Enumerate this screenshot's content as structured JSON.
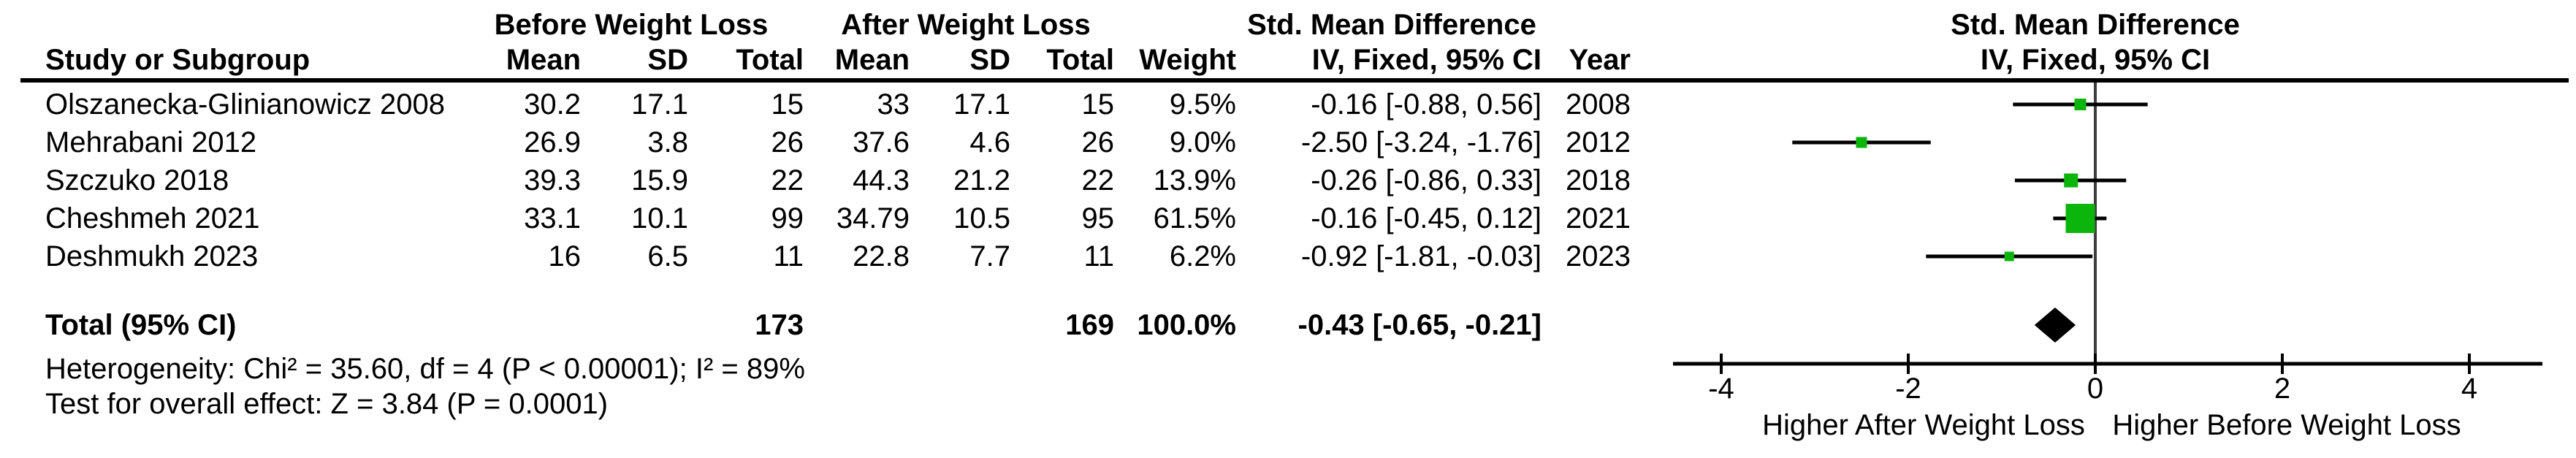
{
  "table": {
    "group_headers": {
      "before": "Before Weight Loss",
      "after": "After Weight Loss",
      "smd": "Std. Mean Difference"
    },
    "col_headers": {
      "study": "Study or Subgroup",
      "mean1": "Mean",
      "sd1": "SD",
      "total1": "Total",
      "mean2": "Mean",
      "sd2": "SD",
      "total2": "Total",
      "weight": "Weight",
      "ci": "IV, Fixed, 95% CI",
      "year": "Year"
    },
    "rows": [
      {
        "study": "Olszanecka-Glinianowicz 2008",
        "mean1": "30.2",
        "sd1": "17.1",
        "total1": "15",
        "mean2": "33",
        "sd2": "17.1",
        "total2": "15",
        "weight": "9.5%",
        "ci": "-0.16 [-0.88, 0.56]",
        "year": "2008"
      },
      {
        "study": "Mehrabani 2012",
        "mean1": "26.9",
        "sd1": "3.8",
        "total1": "26",
        "mean2": "37.6",
        "sd2": "4.6",
        "total2": "26",
        "weight": "9.0%",
        "ci": "-2.50 [-3.24, -1.76]",
        "year": "2012"
      },
      {
        "study": "Szczuko 2018",
        "mean1": "39.3",
        "sd1": "15.9",
        "total1": "22",
        "mean2": "44.3",
        "sd2": "21.2",
        "total2": "22",
        "weight": "13.9%",
        "ci": "-0.26 [-0.86, 0.33]",
        "year": "2018"
      },
      {
        "study": "Cheshmeh 2021",
        "mean1": "33.1",
        "sd1": "10.1",
        "total1": "99",
        "mean2": "34.79",
        "sd2": "10.5",
        "total2": "95",
        "weight": "61.5%",
        "ci": "-0.16 [-0.45, 0.12]",
        "year": "2021"
      },
      {
        "study": "Deshmukh 2023",
        "mean1": "16",
        "sd1": "6.5",
        "total1": "11",
        "mean2": "22.8",
        "sd2": "7.7",
        "total2": "11",
        "weight": "6.2%",
        "ci": "-0.92 [-1.81, -0.03]",
        "year": "2023"
      }
    ],
    "total_row": {
      "label": "Total (95% CI)",
      "total1": "173",
      "total2": "169",
      "weight": "100.0%",
      "ci": "-0.43 [-0.65, -0.21]"
    },
    "heterogeneity": "Heterogeneity: Chi² = 35.60, df = 4 (P < 0.00001); I² = 89%",
    "overall_effect": "Test for overall effect: Z = 3.84 (P = 0.0001)"
  },
  "plot": {
    "header_line1": "Std. Mean Difference",
    "header_line2": "IV, Fixed, 95% CI",
    "x_label_left": "Higher After Weight Loss",
    "x_label_right": "Higher Before Weight Loss",
    "marker_color": "#0CB50C",
    "axis_color": "#000000",
    "zero_line_color": "#3d3d3d",
    "diamond_color": "#000000"
  },
  "chart_data": {
    "type": "forest",
    "title": "Std. Mean Difference, IV, Fixed, 95% CI",
    "effect_measure": "Std. Mean Difference (IV, Fixed, 95% CI)",
    "studies": [
      "Olszanecka-Glinianowicz 2008",
      "Mehrabani 2012",
      "Szczuko 2018",
      "Cheshmeh 2021",
      "Deshmukh 2023"
    ],
    "years": [
      2008,
      2012,
      2018,
      2021,
      2023
    ],
    "before_mean": [
      30.2,
      26.9,
      39.3,
      33.1,
      16
    ],
    "before_sd": [
      17.1,
      3.8,
      15.9,
      10.1,
      6.5
    ],
    "before_total": [
      15,
      26,
      22,
      99,
      11
    ],
    "after_mean": [
      33,
      37.6,
      44.3,
      34.79,
      22.8
    ],
    "after_sd": [
      17.1,
      4.6,
      21.2,
      10.5,
      7.7
    ],
    "after_total": [
      15,
      26,
      22,
      95,
      11
    ],
    "weights_pct": [
      9.5,
      9.0,
      13.9,
      61.5,
      6.2
    ],
    "estimates": [
      -0.16,
      -2.5,
      -0.26,
      -0.16,
      -0.92
    ],
    "ci_low": [
      -0.88,
      -3.24,
      -0.86,
      -0.45,
      -1.81
    ],
    "ci_high": [
      0.56,
      -1.76,
      0.33,
      0.12,
      -0.03
    ],
    "total_before": 173,
    "total_after": 169,
    "total_weight_pct": 100.0,
    "summary": {
      "estimate": -0.43,
      "ci_low": -0.65,
      "ci_high": -0.21
    },
    "heterogeneity": {
      "chi2": 35.6,
      "df": 4,
      "p": "< 0.00001",
      "i2_pct": 89
    },
    "overall_effect": {
      "z": 3.84,
      "p": "= 0.0001"
    },
    "axis_ticks": [
      -4,
      -2,
      0,
      2,
      4
    ],
    "xlim": [
      -4.5,
      4.8
    ],
    "x_label_left": "Higher After Weight Loss",
    "x_label_right": "Higher Before Weight Loss"
  }
}
